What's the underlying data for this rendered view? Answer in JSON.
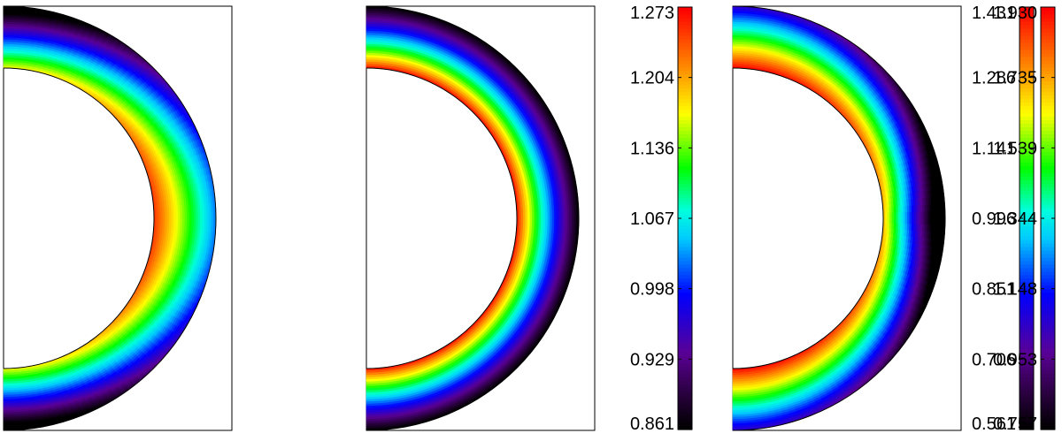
{
  "chart_data": [
    {
      "type": "heatmap",
      "description_type": "annular half-shell color field with colorbar",
      "colormap": "jet-like spectral (black, purple, blue, cyan, green, yellow, orange, red)",
      "colorbar": {
        "min": 0.561,
        "max": 1.431,
        "ticks": [
          "0.561",
          "0.706",
          "0.851",
          "0.996",
          "1.141",
          "1.286",
          "1.431"
        ]
      },
      "field": {
        "peak_location": "inner boundary at equator",
        "low_location": "outer boundary at poles",
        "range": [
          0.561,
          1.431
        ]
      }
    },
    {
      "type": "heatmap",
      "description_type": "annular half-shell color field with colorbar",
      "colormap": "jet-like spectral (black, purple, blue, cyan, green, yellow, orange, red)",
      "colorbar": {
        "min": 0.861,
        "max": 1.273,
        "ticks": [
          "0.861",
          "0.929",
          "0.998",
          "1.067",
          "1.136",
          "1.204",
          "1.273"
        ]
      },
      "field": {
        "peak_location": "inner boundary, uniform in latitude",
        "low_location": "outer boundary, uniform in latitude",
        "range": [
          0.861,
          1.273
        ]
      }
    },
    {
      "type": "heatmap",
      "description_type": "annular half-shell color field with colorbar",
      "colormap": "jet-like spectral (black, purple, blue, cyan, green, yellow, orange, red)",
      "colorbar": {
        "min": 0.757,
        "max": 1.93,
        "ticks": [
          "0.757",
          "0.953",
          "1.148",
          "1.344",
          "1.539",
          "1.735",
          "1.930"
        ]
      },
      "field": {
        "peak_location": "inner boundary at poles",
        "low_location": "outer boundary at equator",
        "range": [
          0.757,
          1.93
        ]
      }
    }
  ]
}
